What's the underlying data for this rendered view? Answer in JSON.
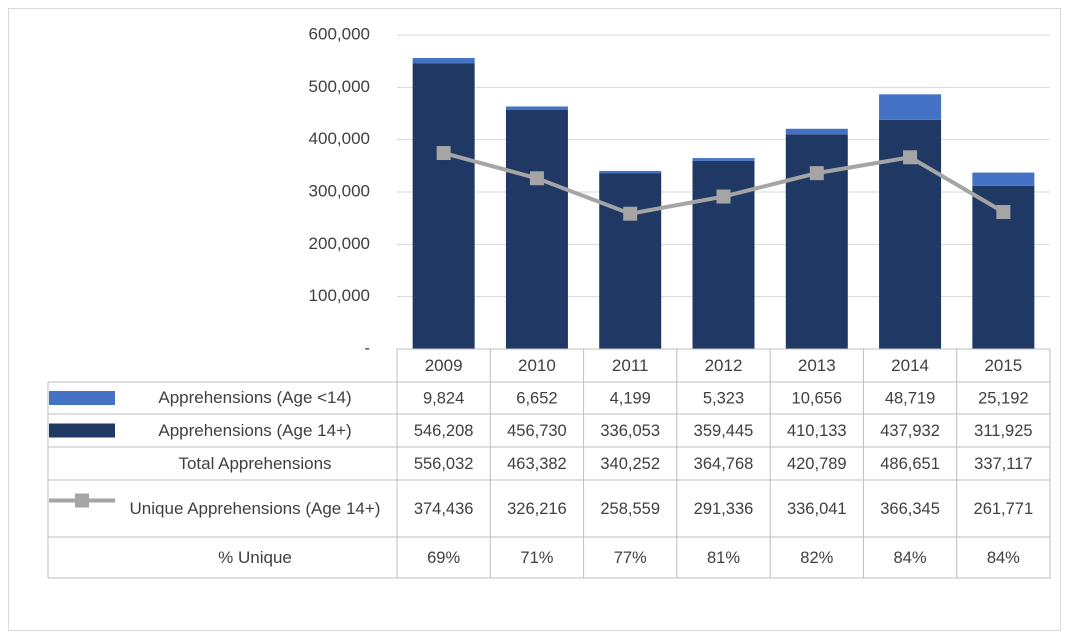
{
  "chart_data": {
    "type": "bar",
    "categories": [
      "2009",
      "2010",
      "2011",
      "2012",
      "2013",
      "2014",
      "2015"
    ],
    "ylim": [
      0,
      600000
    ],
    "yticks": [
      {
        "value": 0,
        "label": "-"
      },
      {
        "value": 100000,
        "label": "100,000"
      },
      {
        "value": 200000,
        "label": "200,000"
      },
      {
        "value": 300000,
        "label": "300,000"
      },
      {
        "value": 400000,
        "label": "400,000"
      },
      {
        "value": 500000,
        "label": "500,000"
      },
      {
        "value": 600000,
        "label": "600,000"
      }
    ],
    "grid": true,
    "stacked": true,
    "series": [
      {
        "name": "Apprehensions (Age <14)",
        "type": "bar",
        "color": "#4472c4",
        "values": [
          9824,
          6652,
          4199,
          5323,
          10656,
          48719,
          25192
        ],
        "value_labels": [
          "9,824",
          "6,652",
          "4,199",
          "5,323",
          "10,656",
          "48,719",
          "25,192"
        ]
      },
      {
        "name": "Apprehensions (Age 14+)",
        "type": "bar",
        "color": "#1f3864",
        "values": [
          546208,
          456730,
          336053,
          359445,
          410133,
          437932,
          311925
        ],
        "value_labels": [
          "546,208",
          "456,730",
          "336,053",
          "359,445",
          "410,133",
          "437,932",
          "311,925"
        ]
      },
      {
        "name": "Total Apprehensions",
        "type": "table",
        "values": [
          556032,
          463382,
          340252,
          364768,
          420789,
          486651,
          337117
        ],
        "value_labels": [
          "556,032",
          "463,382",
          "340,252",
          "364,768",
          "420,789",
          "486,651",
          "337,117"
        ]
      },
      {
        "name": "Unique Apprehensions (Age 14+)",
        "type": "line",
        "color": "#a5a5a5",
        "values": [
          374436,
          326216,
          258559,
          291336,
          336041,
          366345,
          261771
        ],
        "value_labels": [
          "374,436",
          "326,216",
          "258,559",
          "291,336",
          "336,041",
          "366,345",
          "261,771"
        ]
      },
      {
        "name": "% Unique",
        "type": "table",
        "values": [
          69,
          71,
          77,
          81,
          82,
          84,
          84
        ],
        "value_labels": [
          "69%",
          "71%",
          "77%",
          "81%",
          "82%",
          "84%",
          "84%"
        ]
      }
    ]
  }
}
